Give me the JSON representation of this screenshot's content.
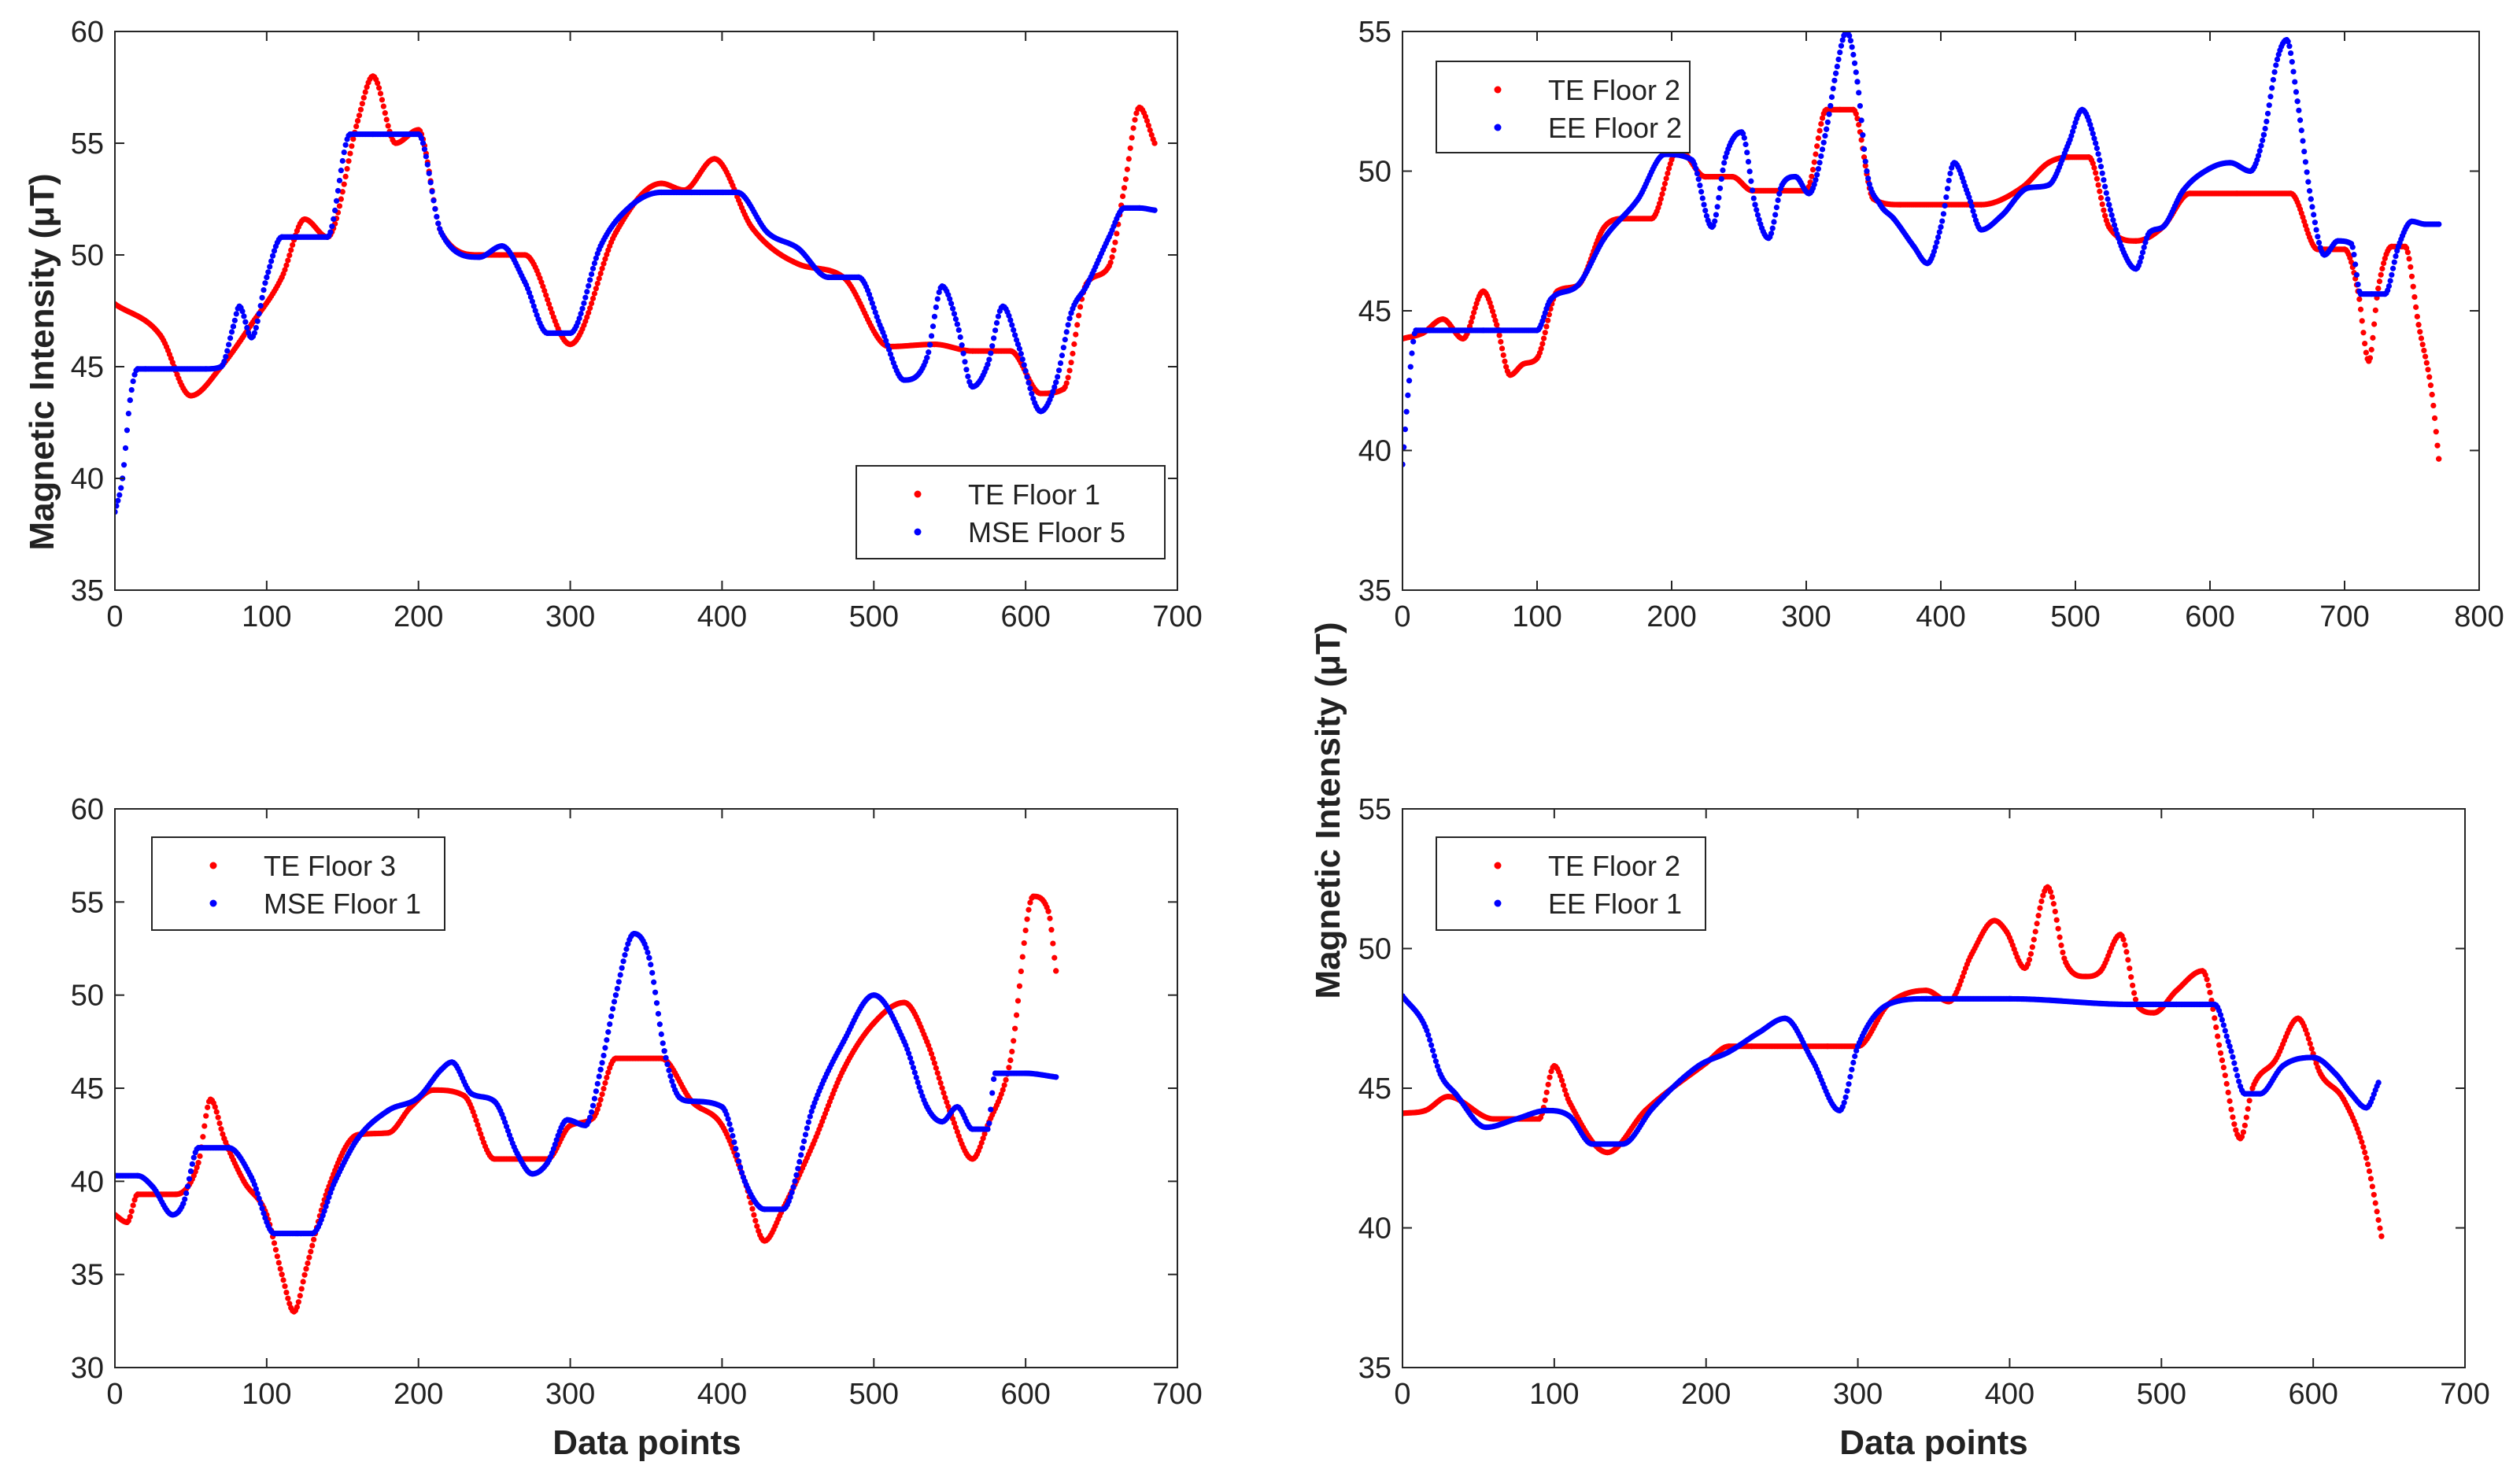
{
  "figure": {
    "ylabel": "Magnetic Intensity (μT)",
    "xlabel": "Data points"
  },
  "chart_data": [
    {
      "type": "scatter",
      "id": "top-left",
      "xlim": [
        0,
        700
      ],
      "ylim": [
        35,
        60
      ],
      "xticks": [
        0,
        100,
        200,
        300,
        400,
        500,
        600,
        700
      ],
      "yticks": [
        35,
        40,
        45,
        50,
        55,
        60
      ],
      "legend_position": "bottom-right",
      "series": [
        {
          "name": "TE Floor 1",
          "color": "#ff0000",
          "x": [
            0,
            30,
            50,
            70,
            90,
            110,
            125,
            140,
            160,
            170,
            185,
            200,
            215,
            240,
            270,
            300,
            330,
            360,
            375,
            395,
            420,
            450,
            480,
            510,
            540,
            565,
            590,
            610,
            625,
            640,
            655,
            665,
            675,
            685
          ],
          "y": [
            47.8,
            46.4,
            43.7,
            45.0,
            46.9,
            49.0,
            51.6,
            50.8,
            56.0,
            58.0,
            55.0,
            55.6,
            51.0,
            50.0,
            50.0,
            46.0,
            51.0,
            53.2,
            52.9,
            54.3,
            51.2,
            49.6,
            49.0,
            45.9,
            46.0,
            45.7,
            45.7,
            43.8,
            44.0,
            48.7,
            49.5,
            53.0,
            56.6,
            55.0
          ]
        },
        {
          "name": "MSE Floor 5",
          "color": "#0000ff",
          "x": [
            0,
            5,
            10,
            15,
            20,
            40,
            60,
            70,
            78,
            82,
            90,
            100,
            110,
            120,
            140,
            155,
            170,
            200,
            215,
            240,
            255,
            270,
            285,
            300,
            320,
            340,
            360,
            380,
            400,
            410,
            430,
            450,
            470,
            490,
            505,
            520,
            535,
            545,
            555,
            565,
            575,
            585,
            595,
            610,
            620,
            630,
            640,
            655,
            665,
            675,
            685
          ],
          "y": [
            38.5,
            40.0,
            43.5,
            44.9,
            44.9,
            44.9,
            44.9,
            45.0,
            46.8,
            47.7,
            46.3,
            49.0,
            50.8,
            50.8,
            50.8,
            55.4,
            55.4,
            55.4,
            51.0,
            49.9,
            50.4,
            48.8,
            46.5,
            46.5,
            50.4,
            52.2,
            52.8,
            52.8,
            52.8,
            52.8,
            51.0,
            50.3,
            49.0,
            49.0,
            46.7,
            44.4,
            45.4,
            48.6,
            46.9,
            44.1,
            45.1,
            47.7,
            46.0,
            43.0,
            44.3,
            47.4,
            48.6,
            50.8,
            52.1,
            52.1,
            52.0
          ]
        }
      ]
    },
    {
      "type": "scatter",
      "id": "top-right",
      "xlim": [
        0,
        800
      ],
      "ylim": [
        35,
        55
      ],
      "xticks": [
        0,
        100,
        200,
        300,
        400,
        500,
        600,
        700,
        800
      ],
      "yticks": [
        35,
        40,
        45,
        50,
        55
      ],
      "legend_position": "top-left",
      "series": [
        {
          "name": "TE Floor 2",
          "color": "#ff0000",
          "x": [
            0,
            15,
            30,
            45,
            60,
            70,
            80,
            90,
            100,
            115,
            130,
            150,
            165,
            185,
            205,
            225,
            245,
            260,
            280,
            300,
            315,
            325,
            335,
            350,
            370,
            400,
            430,
            460,
            480,
            495,
            510,
            525,
            545,
            565,
            585,
            620,
            660,
            680,
            700,
            710,
            718,
            725,
            735,
            745,
            755,
            765,
            770
          ],
          "y": [
            44.0,
            44.2,
            44.7,
            44.0,
            45.7,
            44.5,
            42.7,
            43.1,
            43.3,
            45.7,
            45.9,
            48.0,
            48.3,
            48.3,
            50.8,
            49.8,
            49.8,
            49.3,
            49.3,
            49.3,
            52.2,
            52.2,
            52.2,
            49.0,
            48.8,
            48.8,
            48.8,
            49.4,
            50.3,
            50.5,
            50.5,
            48.0,
            47.5,
            48.0,
            49.2,
            49.2,
            49.2,
            47.2,
            47.2,
            45.7,
            43.2,
            45.8,
            47.3,
            47.3,
            44.5,
            42.0,
            39.7
          ]
        },
        {
          "name": "EE Floor 2",
          "color": "#0000ff",
          "x": [
            0,
            5,
            10,
            20,
            60,
            100,
            110,
            130,
            150,
            175,
            195,
            215,
            230,
            240,
            252,
            262,
            272,
            282,
            292,
            302,
            315,
            322,
            330,
            338,
            345,
            355,
            365,
            380,
            390,
            400,
            410,
            420,
            430,
            445,
            465,
            480,
            495,
            505,
            515,
            525,
            535,
            545,
            555,
            565,
            580,
            600,
            615,
            630,
            640,
            650,
            657,
            665,
            675,
            685,
            695,
            705,
            712,
            720,
            730,
            740,
            750,
            760,
            770
          ],
          "y": [
            39.5,
            42.5,
            44.3,
            44.3,
            44.3,
            44.3,
            45.4,
            45.9,
            47.6,
            49.0,
            50.6,
            50.4,
            48.0,
            50.5,
            51.4,
            48.8,
            47.6,
            49.5,
            49.8,
            49.2,
            51.5,
            53.5,
            55.0,
            53.2,
            50.0,
            48.8,
            48.3,
            47.3,
            46.7,
            48.0,
            50.3,
            49.2,
            47.9,
            48.4,
            49.4,
            49.5,
            51.0,
            52.2,
            51.0,
            48.8,
            47.2,
            46.5,
            47.8,
            48.0,
            49.3,
            50.1,
            50.3,
            50.0,
            51.3,
            54.0,
            54.7,
            52.5,
            49.0,
            47.0,
            47.5,
            47.4,
            45.6,
            45.6,
            45.6,
            47.3,
            48.2,
            48.1,
            48.1
          ]
        }
      ]
    },
    {
      "type": "scatter",
      "id": "bottom-left",
      "xlim": [
        0,
        700
      ],
      "ylim": [
        30,
        60
      ],
      "xticks": [
        0,
        100,
        200,
        300,
        400,
        500,
        600,
        700
      ],
      "yticks": [
        30,
        35,
        40,
        45,
        50,
        55,
        60
      ],
      "legend_position": "top-left",
      "series": [
        {
          "name": "TE Floor 3",
          "color": "#ff0000",
          "x": [
            0,
            8,
            15,
            40,
            55,
            63,
            72,
            85,
            100,
            110,
            118,
            126,
            140,
            160,
            180,
            195,
            210,
            230,
            250,
            265,
            285,
            300,
            315,
            330,
            360,
            380,
            400,
            415,
            428,
            440,
            460,
            480,
            500,
            520,
            535,
            550,
            565,
            575,
            590,
            605,
            615,
            620
          ],
          "y": [
            38.2,
            37.8,
            39.3,
            39.3,
            41.0,
            44.4,
            42.3,
            40.0,
            38.2,
            35.0,
            33.0,
            35.3,
            39.5,
            42.5,
            42.6,
            44.0,
            44.9,
            44.6,
            41.2,
            41.2,
            41.2,
            43.0,
            43.4,
            46.6,
            46.6,
            44.3,
            43.0,
            40.0,
            36.8,
            38.5,
            42.0,
            46.0,
            48.5,
            49.6,
            47.5,
            43.8,
            41.2,
            43.0,
            46.5,
            55.3,
            54.5,
            51.3
          ]
        },
        {
          "name": "MSE Floor 1",
          "color": "#0000ff",
          "x": [
            0,
            15,
            25,
            38,
            45,
            55,
            75,
            90,
            105,
            120,
            130,
            145,
            160,
            180,
            200,
            215,
            222,
            235,
            250,
            265,
            275,
            285,
            298,
            310,
            320,
            330,
            342,
            352,
            362,
            372,
            380,
            400,
            415,
            428,
            440,
            460,
            480,
            500,
            520,
            535,
            545,
            555,
            565,
            575,
            580,
            600,
            620
          ],
          "y": [
            40.3,
            40.3,
            39.7,
            38.2,
            38.8,
            41.8,
            41.8,
            40.2,
            37.2,
            37.2,
            37.2,
            40.0,
            42.3,
            43.8,
            44.5,
            46.0,
            46.4,
            44.7,
            44.3,
            41.5,
            40.4,
            41.0,
            43.3,
            43.0,
            46.0,
            50.0,
            53.3,
            52.0,
            47.0,
            44.5,
            44.3,
            44.0,
            40.0,
            38.5,
            38.5,
            44.0,
            47.5,
            50.0,
            47.5,
            44.0,
            43.2,
            44.0,
            42.8,
            42.8,
            45.8,
            45.8,
            45.6
          ]
        }
      ]
    },
    {
      "type": "scatter",
      "id": "bottom-right",
      "xlim": [
        0,
        700
      ],
      "ylim": [
        35,
        55
      ],
      "xticks": [
        0,
        100,
        200,
        300,
        400,
        500,
        600,
        700
      ],
      "yticks": [
        35,
        40,
        45,
        50,
        55
      ],
      "legend_position": "top-left",
      "series": [
        {
          "name": "TE Floor 2",
          "color": "#ff0000",
          "x": [
            0,
            15,
            30,
            60,
            90,
            100,
            110,
            135,
            160,
            200,
            215,
            230,
            280,
            300,
            320,
            345,
            360,
            375,
            390,
            398,
            410,
            425,
            437,
            450,
            460,
            473,
            485,
            495,
            510,
            527,
            540,
            552,
            560,
            575,
            590,
            605,
            620,
            635,
            645
          ],
          "y": [
            44.1,
            44.2,
            44.7,
            43.9,
            43.9,
            45.8,
            44.5,
            42.7,
            44.2,
            45.9,
            46.5,
            46.5,
            46.5,
            46.5,
            48.0,
            48.5,
            48.1,
            49.8,
            51.0,
            50.6,
            49.3,
            52.2,
            49.5,
            49.0,
            49.2,
            50.5,
            47.9,
            47.7,
            48.5,
            49.2,
            46.0,
            43.2,
            45.0,
            46.0,
            47.5,
            45.5,
            44.6,
            42.5,
            39.7
          ]
        },
        {
          "name": "EE Floor 1",
          "color": "#0000ff",
          "x": [
            0,
            15,
            25,
            35,
            55,
            75,
            95,
            110,
            125,
            145,
            165,
            195,
            215,
            235,
            252,
            270,
            288,
            300,
            320,
            345,
            400,
            480,
            510,
            535,
            545,
            555,
            565,
            580,
            600,
            615,
            625,
            635,
            643
          ],
          "y": [
            48.3,
            47.2,
            45.5,
            44.8,
            43.6,
            43.9,
            44.2,
            44.0,
            43.0,
            43.0,
            44.3,
            45.8,
            46.3,
            47.0,
            47.5,
            46.0,
            44.2,
            46.5,
            48.0,
            48.2,
            48.2,
            48.0,
            48.0,
            48.0,
            46.5,
            44.8,
            44.8,
            45.8,
            46.1,
            45.5,
            44.8,
            44.3,
            45.2
          ]
        }
      ]
    }
  ]
}
